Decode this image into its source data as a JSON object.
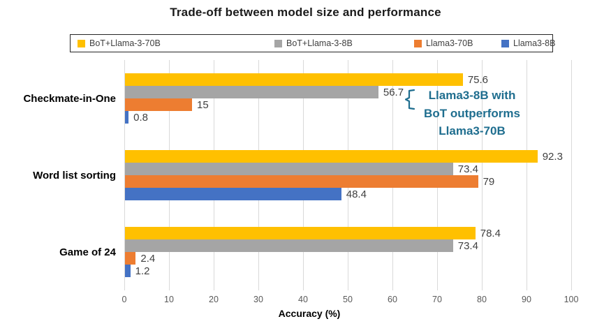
{
  "title": "Trade-off between model size and performance",
  "chart_data": {
    "type": "bar",
    "orientation": "horizontal",
    "title": "Trade-off between model size and performance",
    "categories": [
      "Checkmate-in-One",
      "Word list sorting",
      "Game of 24"
    ],
    "series": [
      {
        "name": "BoT+Llama-3-70B",
        "color": "#FFC000",
        "values": [
          75.6,
          92.3,
          78.4
        ]
      },
      {
        "name": "BoT+Llama-3-8B",
        "color": "#A5A5A5",
        "values": [
          56.7,
          73.4,
          73.4
        ]
      },
      {
        "name": "Llama3-70B",
        "color": "#ED7D31",
        "values": [
          15,
          79,
          2.4
        ]
      },
      {
        "name": "Llama3-8B",
        "color": "#4472C4",
        "values": [
          0.8,
          48.4,
          1.2
        ]
      }
    ],
    "xlabel": "Accuracy (%)",
    "xlim": [
      0,
      100
    ],
    "xticks": [
      0,
      10,
      20,
      30,
      40,
      50,
      60,
      70,
      80,
      90,
      100
    ],
    "grid": true,
    "legend_position": "top",
    "value_labels_shown": true
  },
  "annotation": {
    "lines": [
      "Llama3-8B with",
      "BoT outperforms",
      "Llama3-70B"
    ],
    "color": "#1F6E8F"
  },
  "colors": {
    "gridline": "#D9D9D9",
    "tick_label": "#595959",
    "data_label": "#404040",
    "legend_border": "#262626",
    "background": "#FFFFFF"
  }
}
